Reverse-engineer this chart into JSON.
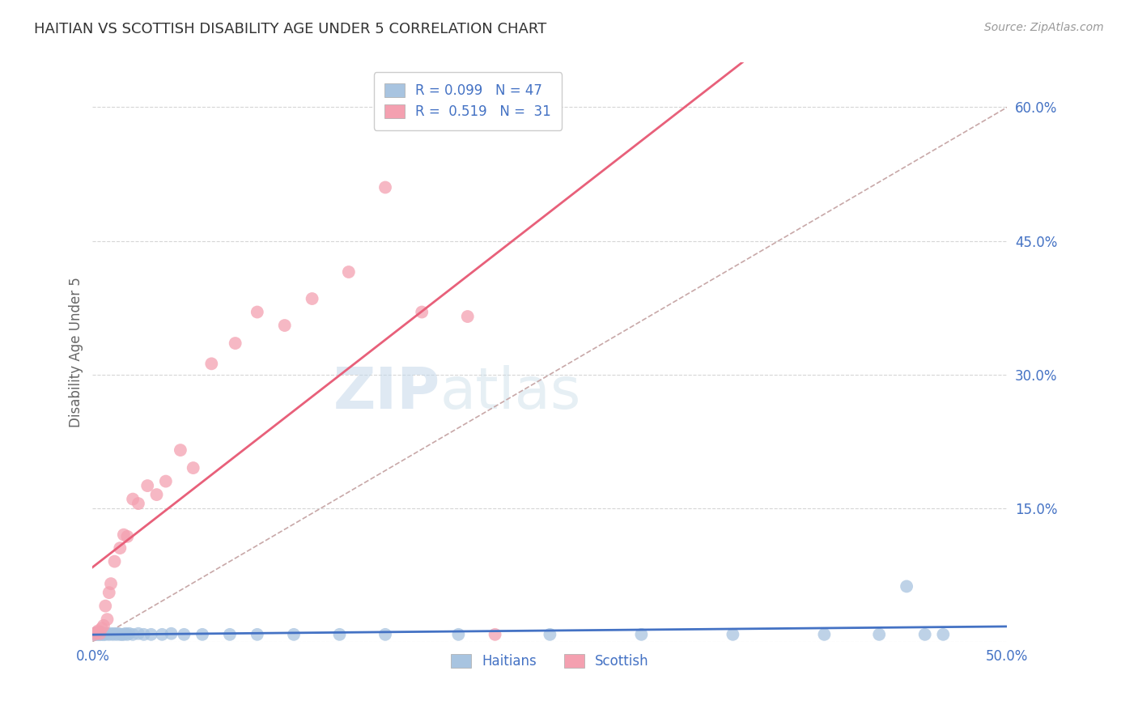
{
  "title": "HAITIAN VS SCOTTISH DISABILITY AGE UNDER 5 CORRELATION CHART",
  "source": "Source: ZipAtlas.com",
  "ylabel": "Disability Age Under 5",
  "xlim": [
    0.0,
    0.5
  ],
  "ylim": [
    0.0,
    0.65
  ],
  "y_ticks_right": [
    0.15,
    0.3,
    0.45,
    0.6
  ],
  "y_tick_labels_right": [
    "15.0%",
    "30.0%",
    "45.0%",
    "60.0%"
  ],
  "grid_color": "#cccccc",
  "background_color": "#ffffff",
  "haitian_color": "#a8c4e0",
  "scottish_color": "#f4a0b0",
  "haitian_line_color": "#4472c4",
  "scottish_line_color": "#e8607a",
  "diagonal_color": "#c8a8a8",
  "axis_label_color": "#4472c4",
  "legend_label_color": "#4472c4",
  "haitian_x": [
    0.001,
    0.002,
    0.002,
    0.003,
    0.003,
    0.004,
    0.004,
    0.005,
    0.005,
    0.006,
    0.006,
    0.007,
    0.008,
    0.009,
    0.01,
    0.011,
    0.012,
    0.013,
    0.014,
    0.015,
    0.016,
    0.017,
    0.018,
    0.019,
    0.02,
    0.022,
    0.025,
    0.028,
    0.032,
    0.038,
    0.043,
    0.05,
    0.06,
    0.075,
    0.09,
    0.11,
    0.135,
    0.16,
    0.2,
    0.25,
    0.3,
    0.35,
    0.4,
    0.43,
    0.445,
    0.455,
    0.465
  ],
  "haitian_y": [
    0.008,
    0.008,
    0.01,
    0.008,
    0.01,
    0.008,
    0.009,
    0.008,
    0.01,
    0.008,
    0.009,
    0.008,
    0.009,
    0.008,
    0.009,
    0.008,
    0.009,
    0.008,
    0.009,
    0.008,
    0.008,
    0.008,
    0.009,
    0.008,
    0.009,
    0.008,
    0.009,
    0.008,
    0.008,
    0.008,
    0.009,
    0.008,
    0.008,
    0.008,
    0.008,
    0.008,
    0.008,
    0.008,
    0.008,
    0.008,
    0.008,
    0.008,
    0.008,
    0.008,
    0.062,
    0.008,
    0.008
  ],
  "scottish_x": [
    0.001,
    0.002,
    0.003,
    0.004,
    0.005,
    0.006,
    0.007,
    0.008,
    0.009,
    0.01,
    0.012,
    0.015,
    0.017,
    0.019,
    0.022,
    0.025,
    0.03,
    0.035,
    0.04,
    0.048,
    0.055,
    0.065,
    0.078,
    0.09,
    0.105,
    0.12,
    0.14,
    0.16,
    0.18,
    0.205,
    0.22
  ],
  "scottish_y": [
    0.008,
    0.01,
    0.012,
    0.009,
    0.015,
    0.018,
    0.04,
    0.025,
    0.055,
    0.065,
    0.09,
    0.105,
    0.12,
    0.118,
    0.16,
    0.155,
    0.175,
    0.165,
    0.18,
    0.215,
    0.195,
    0.312,
    0.335,
    0.37,
    0.355,
    0.385,
    0.415,
    0.51,
    0.37,
    0.365,
    0.008
  ]
}
